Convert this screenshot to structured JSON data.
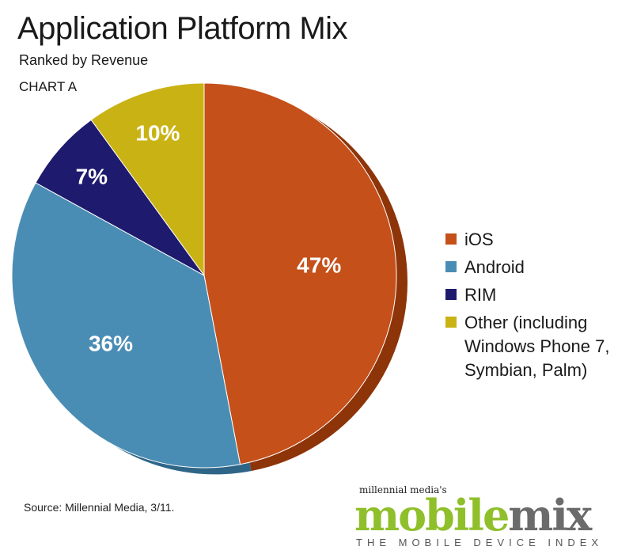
{
  "chart_data": {
    "type": "pie",
    "title": "Application Platform Mix",
    "subtitle": "Ranked by Revenue",
    "chart_label": "CHART A",
    "categories": [
      "iOS",
      "Android",
      "RIM",
      "Other (including Windows Phone 7, Symbian, Palm)"
    ],
    "values": [
      47,
      36,
      7,
      10
    ],
    "data_labels": [
      "47%",
      "36%",
      "7%",
      "10%"
    ],
    "slice_order": [
      "iOS",
      "Android",
      "RIM",
      "Other (including Windows Phone 7, Symbian, Palm)"
    ],
    "start_angle_deg": -90,
    "direction": "clockwise",
    "colors": {
      "iOS": "#c5501a",
      "Android": "#4a8db4",
      "RIM": "#1e1a6e",
      "Other (including Windows Phone 7, Symbian, Palm)": "#c9b214"
    },
    "side_colors": {
      "iOS": "#8e3409",
      "Android": "#2f6688",
      "RIM": "#12104a",
      "Other (including Windows Phone 7, Symbian, Palm)": "#927f0a"
    },
    "legend_position": "right",
    "source": "Source: Millennial Media, 3/11."
  },
  "logo": {
    "top": "millennial media's",
    "word1": "mobile",
    "word2": "mix",
    "sub": "THE MOBILE DEVICE INDEX"
  }
}
